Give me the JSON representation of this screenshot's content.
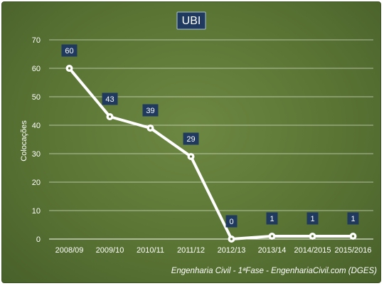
{
  "chart_data": {
    "type": "line",
    "title": "UBI",
    "ylabel": "Colocações",
    "xlabel": "",
    "categories": [
      "2008/09",
      "2009/10",
      "2010/11",
      "2011/12",
      "2012/13",
      "2013/14",
      "2014/2015",
      "2015/2016"
    ],
    "series": [
      {
        "values": [
          60,
          43,
          39,
          29,
          0,
          1,
          1,
          1
        ]
      }
    ],
    "ylim": [
      0,
      70
    ],
    "yticks": [
      0,
      10,
      20,
      30,
      40,
      50,
      60,
      70
    ],
    "grid": true,
    "legend": "none",
    "data_labels": true,
    "footnote": "Engenharia Civil - 1ªFase - EngenhariaCivil.com  (DGES)",
    "colors": {
      "background": "#5a7434",
      "line": "#ffffff",
      "label_box": "#1f3a5e",
      "text": "#ffffff"
    }
  }
}
